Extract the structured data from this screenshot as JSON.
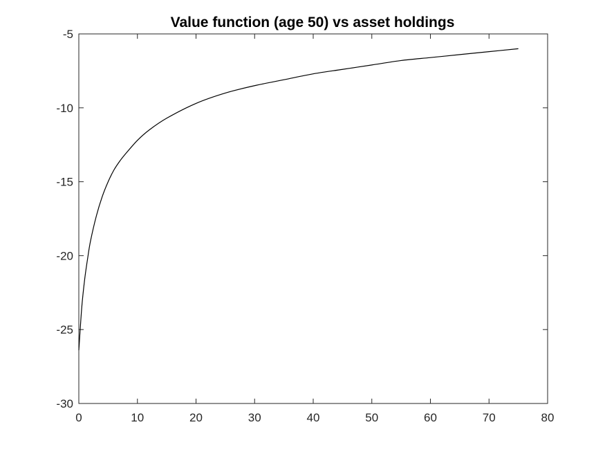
{
  "chart_data": {
    "type": "line",
    "title": "Value function (age 50) vs asset holdings",
    "xlabel": "",
    "ylabel": "",
    "xlim": [
      0,
      80
    ],
    "ylim": [
      -30,
      -5
    ],
    "xticks": [
      0,
      10,
      20,
      30,
      40,
      50,
      60,
      70,
      80
    ],
    "yticks": [
      -30,
      -25,
      -20,
      -15,
      -10,
      -5
    ],
    "xtick_labels": [
      "0",
      "10",
      "20",
      "30",
      "40",
      "50",
      "60",
      "70",
      "80"
    ],
    "ytick_labels": [
      "-30",
      "-25",
      "-20",
      "-15",
      "-10",
      "-5"
    ],
    "grid": false,
    "legend": "none",
    "line_color": "#000000",
    "series": [
      {
        "x": [
          0,
          0.5,
          1,
          1.5,
          2,
          3,
          4,
          5,
          6,
          7,
          8,
          10,
          12,
          15,
          20,
          25,
          30,
          35,
          40,
          45,
          50,
          55,
          60,
          65,
          70,
          75
        ],
        "y": [
          -26.4,
          -23.5,
          -21.6,
          -20.2,
          -19.0,
          -17.3,
          -16.0,
          -15.0,
          -14.2,
          -13.6,
          -13.1,
          -12.2,
          -11.5,
          -10.7,
          -9.7,
          -9.0,
          -8.5,
          -8.1,
          -7.7,
          -7.4,
          -7.1,
          -6.8,
          -6.6,
          -6.4,
          -6.2,
          -6.0
        ]
      }
    ]
  }
}
